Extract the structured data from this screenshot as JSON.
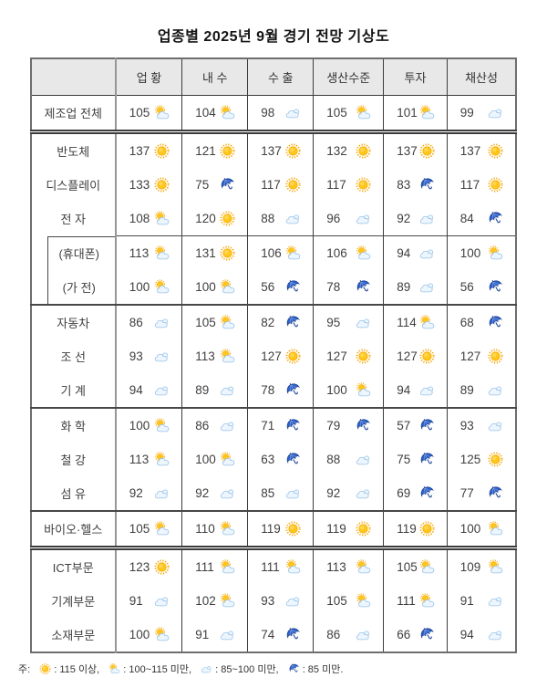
{
  "chart_data": {
    "type": "table",
    "title": "업종별 2025년 9월 경기 전망 기상도",
    "columns": [
      "업 황",
      "내 수",
      "수 출",
      "생산수준",
      "투자",
      "채산성"
    ],
    "rows": [
      {
        "label": "제조업 전체",
        "group": 1,
        "values": [
          105,
          104,
          98,
          105,
          101,
          99
        ],
        "icons": [
          "partly",
          "partly",
          "cloudy",
          "partly",
          "partly",
          "cloudy"
        ]
      },
      {
        "label": "반도체",
        "group": 2,
        "values": [
          137,
          121,
          137,
          132,
          137,
          137
        ],
        "icons": [
          "sun",
          "sun",
          "sun",
          "sun",
          "sun",
          "sun"
        ]
      },
      {
        "label": "디스플레이",
        "group": 2,
        "values": [
          133,
          75,
          117,
          117,
          83,
          117
        ],
        "icons": [
          "sun",
          "rain",
          "sun",
          "sun",
          "rain",
          "sun"
        ]
      },
      {
        "label": "전 자",
        "group": 2,
        "values": [
          108,
          120,
          88,
          96,
          92,
          84
        ],
        "icons": [
          "partly",
          "sun",
          "cloudy",
          "cloudy",
          "cloudy",
          "rain"
        ]
      },
      {
        "label": "(휴대폰)",
        "group": 2,
        "sub": "first",
        "values": [
          113,
          131,
          106,
          106,
          94,
          100
        ],
        "icons": [
          "partly",
          "sun",
          "partly",
          "partly",
          "cloudy",
          "partly"
        ]
      },
      {
        "label": "(가 전)",
        "group": 2,
        "sub": "last",
        "values": [
          100,
          100,
          56,
          78,
          89,
          56
        ],
        "icons": [
          "partly",
          "partly",
          "rain",
          "rain",
          "cloudy",
          "rain"
        ]
      },
      {
        "label": "자동차",
        "group": 3,
        "values": [
          86,
          105,
          82,
          95,
          114,
          68
        ],
        "icons": [
          "cloudy",
          "partly",
          "rain",
          "cloudy",
          "partly",
          "rain"
        ]
      },
      {
        "label": "조 선",
        "group": 3,
        "values": [
          93,
          113,
          127,
          127,
          127,
          127
        ],
        "icons": [
          "cloudy",
          "partly",
          "sun",
          "sun",
          "sun",
          "sun"
        ]
      },
      {
        "label": "기 계",
        "group": 3,
        "values": [
          94,
          89,
          78,
          100,
          94,
          89
        ],
        "icons": [
          "cloudy",
          "cloudy",
          "rain",
          "partly",
          "cloudy",
          "cloudy"
        ]
      },
      {
        "label": "화 학",
        "group": 4,
        "values": [
          100,
          86,
          71,
          79,
          57,
          93
        ],
        "icons": [
          "partly",
          "cloudy",
          "rain",
          "rain",
          "rain",
          "cloudy"
        ]
      },
      {
        "label": "철 강",
        "group": 4,
        "values": [
          113,
          100,
          63,
          88,
          75,
          125
        ],
        "icons": [
          "partly",
          "partly",
          "rain",
          "cloudy",
          "rain",
          "sun"
        ]
      },
      {
        "label": "섬 유",
        "group": 4,
        "values": [
          92,
          92,
          85,
          92,
          69,
          77
        ],
        "icons": [
          "cloudy",
          "cloudy",
          "cloudy",
          "cloudy",
          "rain",
          "rain"
        ]
      },
      {
        "label": "바이오·헬스",
        "group": 5,
        "values": [
          105,
          110,
          119,
          119,
          119,
          100
        ],
        "icons": [
          "partly",
          "partly",
          "sun",
          "sun",
          "sun",
          "partly"
        ]
      },
      {
        "label": "ICT부문",
        "group": 6,
        "values": [
          123,
          111,
          111,
          113,
          105,
          109
        ],
        "icons": [
          "sun",
          "partly",
          "partly",
          "partly",
          "partly",
          "partly"
        ]
      },
      {
        "label": "기계부문",
        "group": 6,
        "values": [
          91,
          102,
          93,
          105,
          111,
          91
        ],
        "icons": [
          "cloudy",
          "partly",
          "cloudy",
          "partly",
          "partly",
          "cloudy"
        ]
      },
      {
        "label": "소재부문",
        "group": 6,
        "values": [
          100,
          91,
          74,
          86,
          66,
          94
        ],
        "icons": [
          "partly",
          "cloudy",
          "rain",
          "cloudy",
          "rain",
          "cloudy"
        ]
      }
    ],
    "double_separator_after_groups": [
      1,
      5
    ],
    "icon_scale": {
      "sun": "115 이상",
      "partly": "100~115 미만",
      "cloudy": "85~100 미만",
      "rain": "85 미만"
    },
    "legend": {
      "prefix": "주: ",
      "items": [
        {
          "icon": "sun",
          "text": ": 115 이상, "
        },
        {
          "icon": "partly",
          "text": ": 100~115 미만, "
        },
        {
          "icon": "cloudy",
          "text": ": 85~100 미만, "
        },
        {
          "icon": "rain",
          "text": ": 85 미만."
        }
      ]
    }
  },
  "colors": {
    "header_bg": "#e8e8e8",
    "grid": "#3c3c3c",
    "outer": "#6e6e6e",
    "label_divider": "#979797",
    "text": "#3f3f3f",
    "sun": "#ffc61a",
    "sun_ray": "#f6a500",
    "cloud": "#edf6fe",
    "cloud_edge": "#97c2e6",
    "umbrella": "#2e61c8",
    "umbrella_edge": "#1b4193"
  }
}
